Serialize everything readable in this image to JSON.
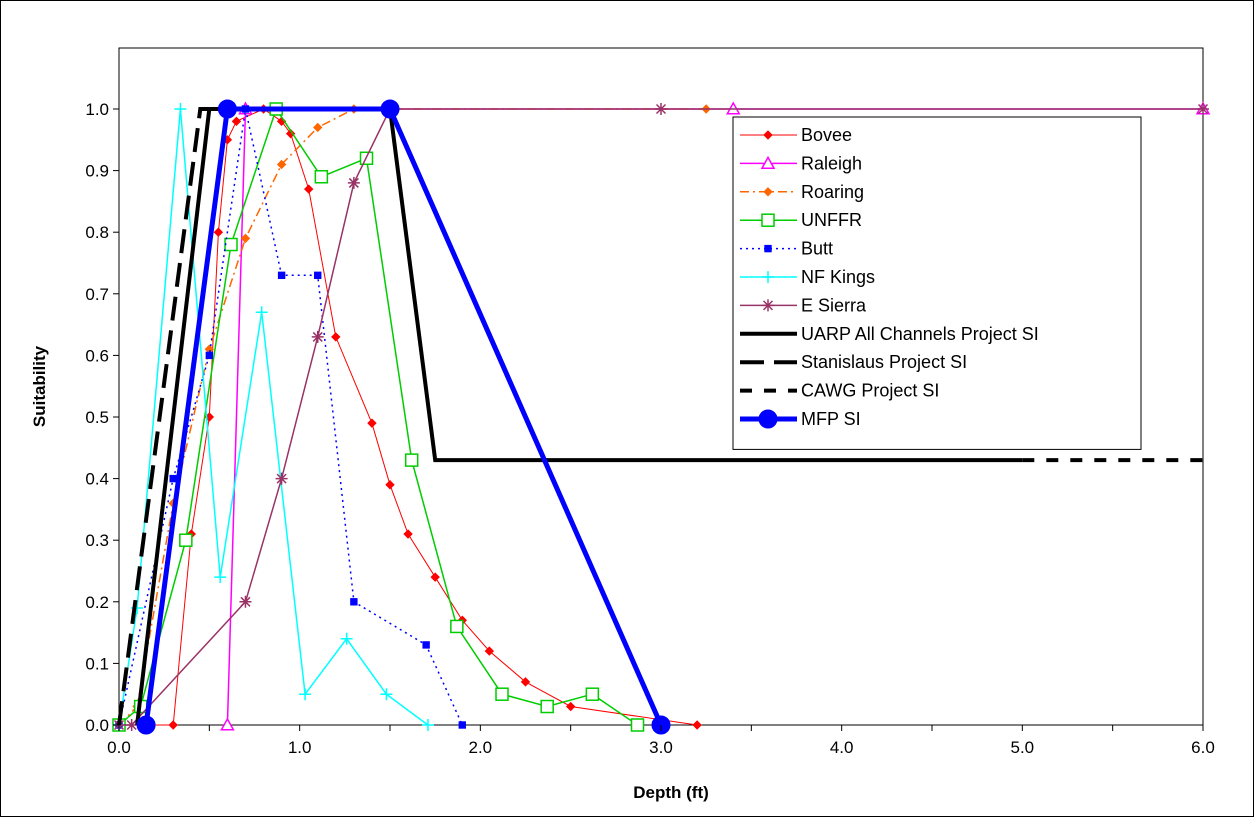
{
  "chart_data": {
    "type": "line",
    "title": "",
    "xlabel": "Depth (ft)",
    "ylabel": "Suitability",
    "xlim": [
      0,
      6
    ],
    "ylim": [
      0,
      1
    ],
    "x_ticks": [
      "0.0",
      "1.0",
      "2.0",
      "3.0",
      "4.0",
      "5.0",
      "6.0"
    ],
    "y_ticks": [
      "0.0",
      "0.1",
      "0.2",
      "0.3",
      "0.4",
      "0.5",
      "0.6",
      "0.7",
      "0.8",
      "0.9",
      "1.0"
    ],
    "grid": false,
    "legend_position": "top-right",
    "series": [
      {
        "name": "Bovee",
        "color": "#ff0000",
        "dash": "",
        "width": 1,
        "marker": "diamond",
        "x": [
          0,
          0.3,
          0.4,
          0.5,
          0.55,
          0.6,
          0.65,
          0.8,
          0.9,
          0.95,
          1.05,
          1.2,
          1.4,
          1.5,
          1.6,
          1.75,
          1.9,
          2.05,
          2.25,
          2.5,
          3.2
        ],
        "y": [
          0,
          0,
          0.31,
          0.5,
          0.8,
          0.95,
          0.98,
          1.0,
          0.98,
          0.96,
          0.87,
          0.63,
          0.49,
          0.39,
          0.31,
          0.24,
          0.17,
          0.12,
          0.07,
          0.03,
          0
        ]
      },
      {
        "name": "Raleigh",
        "color": "#ff00ff",
        "dash": "",
        "width": 1.5,
        "marker": "triangle",
        "x": [
          0.6,
          0.7,
          3.4,
          6.0
        ],
        "y": [
          0,
          1.0,
          1.0,
          1.0
        ]
      },
      {
        "name": "Roaring",
        "color": "#ff6600",
        "dash": "9,4,2,4",
        "width": 1.5,
        "marker": "diamond",
        "x": [
          0,
          0.1,
          0.3,
          0.5,
          0.7,
          0.9,
          1.1,
          1.3,
          3.25
        ],
        "y": [
          0,
          0.03,
          0.36,
          0.61,
          0.79,
          0.91,
          0.97,
          1.0,
          1.0
        ]
      },
      {
        "name": "UNFFR",
        "color": "#00cc00",
        "dash": "",
        "width": 1.5,
        "marker": "square-open",
        "x": [
          0,
          0.12,
          0.37,
          0.62,
          0.87,
          1.12,
          1.37,
          1.62,
          1.87,
          2.12,
          2.37,
          2.62,
          2.87
        ],
        "y": [
          0,
          0.03,
          0.3,
          0.78,
          1.0,
          0.89,
          0.92,
          0.43,
          0.16,
          0.05,
          0.03,
          0.05,
          0
        ]
      },
      {
        "name": "Butt",
        "color": "#0000ff",
        "dash": "2,4",
        "width": 1.5,
        "marker": "square",
        "x": [
          0,
          0.3,
          0.5,
          0.7,
          0.9,
          1.1,
          1.3,
          1.7,
          1.9
        ],
        "y": [
          0,
          0.4,
          0.6,
          1.0,
          0.73,
          0.73,
          0.2,
          0.13,
          0
        ]
      },
      {
        "name": "NF Kings",
        "color": "#00ffff",
        "dash": "",
        "width": 1.5,
        "marker": "plus",
        "x": [
          0,
          0.1,
          0.34,
          0.56,
          0.79,
          1.03,
          1.26,
          1.48,
          1.71
        ],
        "y": [
          0,
          0.19,
          1.0,
          0.24,
          0.67,
          0.05,
          0.14,
          0.05,
          0
        ]
      },
      {
        "name": "E Sierra",
        "color": "#993366",
        "dash": "",
        "width": 1.5,
        "marker": "star",
        "x": [
          0,
          0.07,
          0.7,
          0.9,
          1.1,
          1.3,
          1.5,
          3.0,
          6.0
        ],
        "y": [
          0,
          0,
          0.2,
          0.4,
          0.63,
          0.88,
          1.0,
          1.0,
          1.0
        ]
      },
      {
        "name": "UARP All Channels Project SI",
        "color": "#000000",
        "dash": "",
        "width": 4,
        "marker": "none",
        "x": [
          0.1,
          0.5,
          1.5,
          1.75,
          5.0
        ],
        "y": [
          0,
          1.0,
          1.0,
          0.43,
          0.43
        ]
      },
      {
        "name": "Stanislaus Project SI",
        "color": "#000000",
        "dash": "24,10",
        "width": 4,
        "marker": "none",
        "x": [
          0,
          0.45,
          1.5
        ],
        "y": [
          0,
          1.0,
          1.0
        ]
      },
      {
        "name": "CAWG Project SI",
        "color": "#000000",
        "dash": "12,12",
        "width": 4,
        "marker": "none",
        "x": [
          5.0,
          6.0
        ],
        "y": [
          0.43,
          0.43
        ]
      },
      {
        "name": "MFP SI",
        "color": "#0000ff",
        "dash": "",
        "width": 5,
        "marker": "circle",
        "x": [
          0.15,
          0.6,
          1.5,
          3.0
        ],
        "y": [
          0,
          1.0,
          1.0,
          0
        ]
      }
    ]
  }
}
